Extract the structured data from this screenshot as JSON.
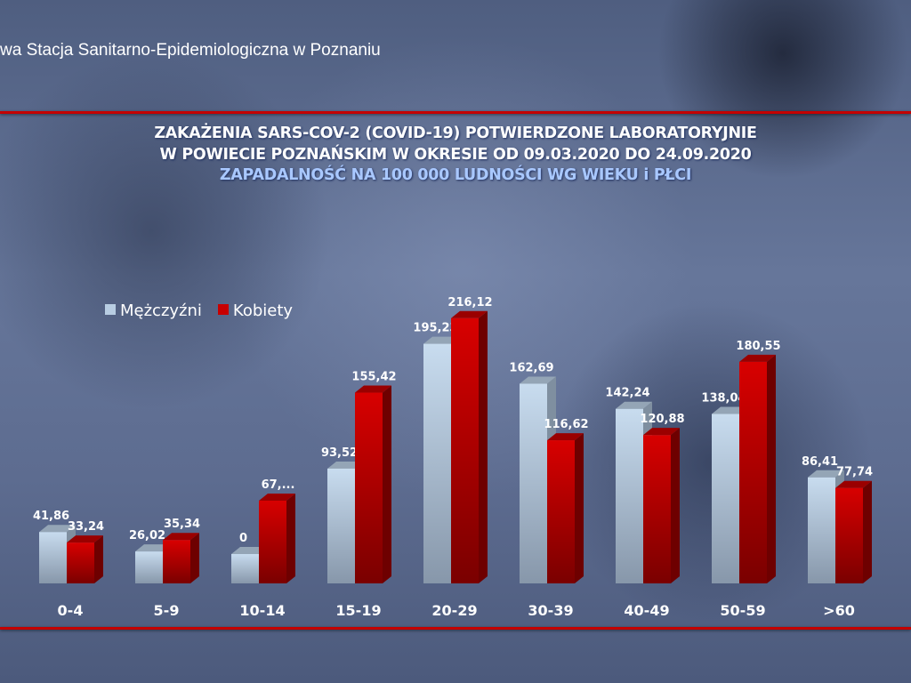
{
  "header": {
    "org": "wa Stacja Sanitarno-Epidemiologiczna w Poznaniu"
  },
  "chart_data": {
    "type": "bar",
    "title": "ZAKAŻENIA SARS-COV-2 (COVID-19) POTWIERDZONE LABORATORYJNIE",
    "title_line2": "W POWIECIE POZNAŃSKIM W OKRESIE OD 09.03.2020 DO 24.09.2020",
    "subtitle": "ZAPADALNOŚĆ NA 100 000 LUDNOŚCI WG WIEKU i PŁCI",
    "categories": [
      "0-4",
      "5-9",
      "10-14",
      "15-19",
      "20-29",
      "30-39",
      "40-49",
      "50-59",
      ">60"
    ],
    "legend_position": "top-left",
    "grid": false,
    "series": [
      {
        "name": "Mężczyźni",
        "color": "#b8cde2",
        "values": [
          41.86,
          26.02,
          0,
          93.52,
          195.23,
          162.69,
          142.24,
          138.04,
          86.41
        ],
        "labels": [
          "41,86",
          "26,02",
          "0",
          "93,52",
          "195,23",
          "162,69",
          "142,24",
          "138,04",
          "86,41"
        ]
      },
      {
        "name": "Kobiety",
        "color": "#c80000",
        "values": [
          33.24,
          35.34,
          67.4,
          155.42,
          216.12,
          116.62,
          120.88,
          180.55,
          77.74
        ],
        "labels": [
          "33,24",
          "35,34",
          "67,...",
          "155,42",
          "216,12",
          "116,62",
          "120,88",
          "180,55",
          "77,74"
        ]
      }
    ]
  }
}
